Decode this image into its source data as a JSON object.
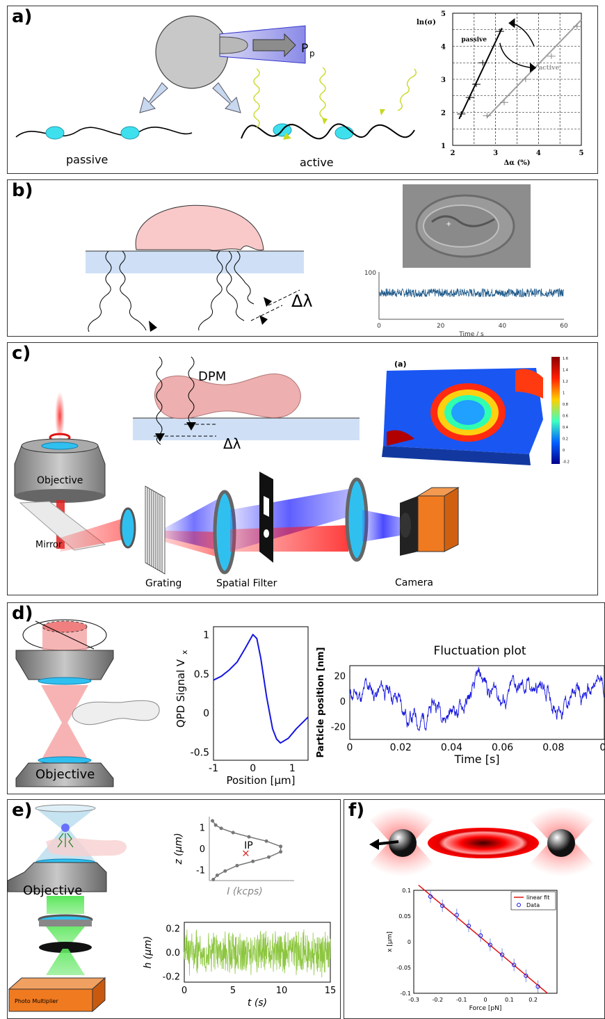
{
  "panel_a": {
    "label": "a)",
    "passive": "passive",
    "active": "active",
    "pp": "P",
    "pp_sub": "p",
    "chart": {
      "ylabel": "ln(σ)",
      "xlabel": "Δα (%)",
      "x_ticks": [
        "2",
        "3",
        "4",
        "5"
      ],
      "y_ticks": [
        "1",
        "2",
        "3",
        "4",
        "5"
      ],
      "passive_label": "passive",
      "active_label": "active"
    }
  },
  "panel_b": {
    "label": "b)",
    "dlambda": "Δλ",
    "trace": {
      "y_tick": "100",
      "y0_tick": "0",
      "x_ticks": [
        "0",
        "20",
        "40",
        "60"
      ],
      "xlabel": "Time  / s"
    }
  },
  "panel_c": {
    "label": "c)",
    "dpm": "DPM",
    "dlambda": "Δλ",
    "objective": "Objective",
    "mirror": "Mirror",
    "grating": "Grating",
    "spatial_filter": "Spatial Filter",
    "camera": "Camera",
    "inset_label": "(a)",
    "colorbar_ticks": [
      "1.6",
      "1.4",
      "1.2",
      "1",
      "0.8",
      "0.6",
      "0.4",
      "0.2",
      "0",
      "-0.2"
    ]
  },
  "panel_d": {
    "label": "d)",
    "objective": "Objective",
    "qpd": {
      "ylabel": "QPD Signal V",
      "ylabel_sub": "x",
      "xlabel": "Position [μm]",
      "x_ticks": [
        "-1",
        "0",
        "1"
      ],
      "y_ticks": [
        "1",
        "0.5",
        "0",
        "-0.5"
      ]
    },
    "fluct": {
      "title": "Fluctuation plot",
      "ylabel": "Particle position [nm]",
      "xlabel": "Time [s]",
      "x_ticks": [
        "0",
        "0.02",
        "0.04",
        "0.06",
        "0.08",
        "0."
      ],
      "y_ticks": [
        "20",
        "0",
        "-20"
      ]
    }
  },
  "panel_e": {
    "label": "e)",
    "objective": "Objective",
    "pm": "Photo Multiplier",
    "zplot": {
      "ylabel": "z (μm)",
      "xlabel": "I (kcps)",
      "ip": "IP",
      "y_ticks": [
        "1",
        "0",
        "-1"
      ]
    },
    "hplot": {
      "ylabel": "h (μm)",
      "xlabel": "t (s)",
      "x_ticks": [
        "0",
        "5",
        "10",
        "15"
      ],
      "y_ticks": [
        "0.2",
        "0.0",
        "-0.2"
      ]
    }
  },
  "panel_f": {
    "label": "f)",
    "chart": {
      "ylabel": "x [μm]",
      "xlabel": "Force [pN]",
      "x_ticks": [
        "-0.3",
        "-0.2",
        "-0.1",
        "0",
        "0.1",
        "0.2"
      ],
      "y_ticks": [
        "0.1",
        "0.05",
        "0",
        "-0.05",
        "-0.1"
      ],
      "legend_fit": "linear fit",
      "legend_data": "Data"
    }
  },
  "chart_data": [
    {
      "type": "scatter",
      "xlabel": "Δα (%)",
      "ylabel": "ln(σ)",
      "xlim": [
        2,
        5
      ],
      "ylim": [
        1,
        5
      ],
      "series": [
        {
          "name": "passive",
          "x": [
            2.2,
            2.4,
            2.55,
            2.7,
            3.1
          ],
          "y": [
            1.95,
            2.45,
            2.85,
            3.5,
            4.45
          ]
        },
        {
          "name": "active",
          "x": [
            2.8,
            3.2,
            3.7,
            4.3,
            4.9
          ],
          "y": [
            1.9,
            2.3,
            3.0,
            3.7,
            4.6
          ]
        }
      ]
    },
    {
      "type": "line",
      "xlabel": "Position [μm]",
      "ylabel": "QPD Signal Vx",
      "xlim": [
        -1,
        1.4
      ],
      "ylim": [
        -0.6,
        1.1
      ],
      "x": [
        -1,
        -0.8,
        -0.6,
        -0.4,
        -0.2,
        0,
        0.1,
        0.2,
        0.35,
        0.5,
        0.6,
        0.7,
        0.9,
        1.1,
        1.4
      ],
      "values": [
        0.42,
        0.47,
        0.55,
        0.65,
        0.82,
        1.0,
        0.95,
        0.7,
        0.2,
        -0.2,
        -0.33,
        -0.38,
        -0.32,
        -0.2,
        -0.05
      ]
    },
    {
      "type": "scatter",
      "xlabel": "Force [pN]",
      "ylabel": "x [μm]",
      "xlim": [
        -0.3,
        0.3
      ],
      "ylim": [
        -0.1,
        0.1
      ],
      "series": [
        {
          "name": "Data",
          "x": [
            -0.23,
            -0.18,
            -0.12,
            -0.07,
            -0.02,
            0.02,
            0.07,
            0.12,
            0.17,
            0.22
          ],
          "y": [
            0.088,
            0.07,
            0.052,
            0.031,
            0.012,
            -0.006,
            -0.025,
            -0.045,
            -0.066,
            -0.087
          ]
        },
        {
          "name": "linear fit",
          "x": [
            -0.28,
            0.26
          ],
          "y": [
            0.11,
            -0.1
          ]
        }
      ]
    }
  ]
}
